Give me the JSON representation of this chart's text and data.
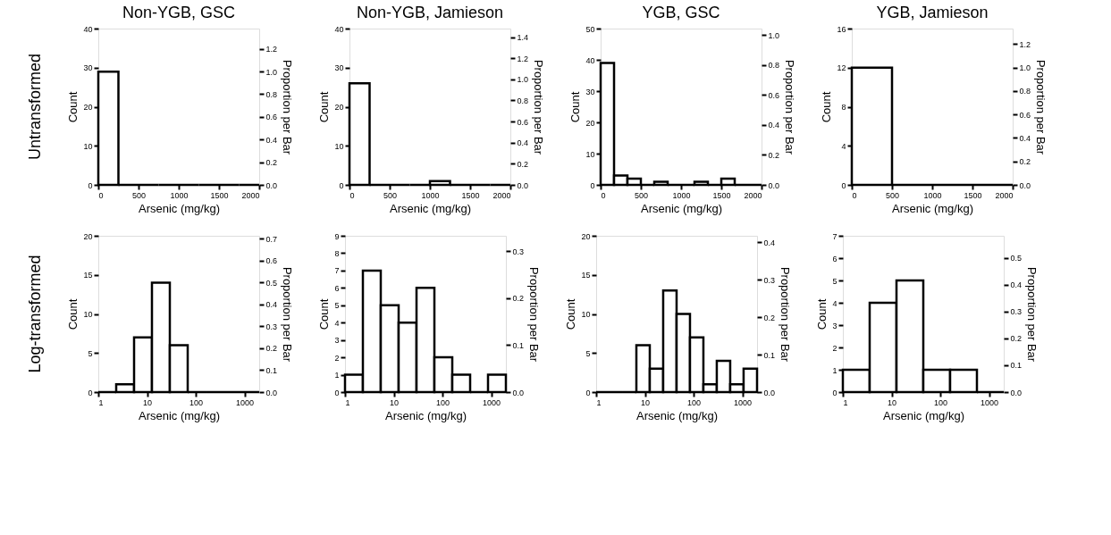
{
  "chart_data": [
    {
      "type": "histogram",
      "title": "Non-YGB,  GSC",
      "xlabel": "Arsenic (mg/kg)",
      "ylabel": "Count",
      "y2label": "Proportion per Bar",
      "annotations": [
        "Untransformed"
      ],
      "color": "#000000",
      "bins": [
        0,
        250,
        500,
        750,
        1000,
        1250,
        1500,
        1750,
        2000
      ],
      "values": [
        29,
        0,
        0,
        0,
        0,
        0,
        0,
        0
      ],
      "xlim": [
        0,
        2000
      ],
      "xticks": [
        0,
        500,
        1000,
        1500,
        2000
      ],
      "ylim": [
        0,
        40
      ],
      "yticks": [
        0,
        10,
        20,
        30,
        40
      ],
      "y2lim": [
        0,
        1.379
      ],
      "y2ticks": [
        {
          "value": 0,
          "label": "0.0"
        },
        {
          "value": 0.2,
          "label": "0.2"
        },
        {
          "value": 0.4,
          "label": "0.4"
        },
        {
          "value": 0.6,
          "label": "0.6"
        },
        {
          "value": 0.8,
          "label": "0.8"
        },
        {
          "value": 1,
          "label": "1.0"
        },
        {
          "value": 1.2,
          "label": "1.2"
        }
      ]
    },
    {
      "type": "histogram",
      "title": "Non-YGB,  Jamieson",
      "xlabel": "Arsenic (mg/kg)",
      "ylabel": "Count",
      "y2label": "Proportion per Bar",
      "color": "#000000",
      "bins": [
        0,
        250,
        500,
        750,
        1000,
        1250,
        1500,
        1750,
        2000
      ],
      "values": [
        26,
        0,
        0,
        0,
        1,
        0,
        0,
        0
      ],
      "xlim": [
        0,
        2000
      ],
      "xticks": [
        0,
        500,
        1000,
        1500,
        2000
      ],
      "ylim": [
        0,
        40
      ],
      "yticks": [
        0,
        10,
        20,
        30,
        40
      ],
      "y2lim": [
        0,
        1.481
      ],
      "y2ticks": [
        {
          "value": 0,
          "label": "0.0"
        },
        {
          "value": 0.2,
          "label": "0.2"
        },
        {
          "value": 0.4,
          "label": "0.4"
        },
        {
          "value": 0.6,
          "label": "0.6"
        },
        {
          "value": 0.8,
          "label": "0.8"
        },
        {
          "value": 1,
          "label": "1.0"
        },
        {
          "value": 1.2,
          "label": "1.2"
        },
        {
          "value": 1.4,
          "label": "1.4"
        }
      ]
    },
    {
      "type": "histogram",
      "title": "YGB,  GSC",
      "xlabel": "Arsenic (mg/kg)",
      "ylabel": "Count",
      "y2label": "Proportion per Bar",
      "color": "#000000",
      "bins": [
        0,
        166.7,
        333.3,
        500,
        666.7,
        833.3,
        1000,
        1166.7,
        1333.3,
        1500,
        1666.7,
        1833.3,
        2000
      ],
      "values": [
        39,
        3,
        2,
        0,
        1,
        0,
        0,
        1,
        0,
        2,
        0,
        0
      ],
      "xlim": [
        0,
        2000
      ],
      "xticks": [
        0,
        500,
        1000,
        1500,
        2000
      ],
      "ylim": [
        0,
        50
      ],
      "yticks": [
        0,
        10,
        20,
        30,
        40,
        50
      ],
      "y2lim": [
        0,
        1.042
      ],
      "y2ticks": [
        {
          "value": 0,
          "label": "0.0"
        },
        {
          "value": 0.2,
          "label": "0.2"
        },
        {
          "value": 0.4,
          "label": "0.4"
        },
        {
          "value": 0.6,
          "label": "0.6"
        },
        {
          "value": 0.8,
          "label": "0.8"
        },
        {
          "value": 1,
          "label": "1.0"
        }
      ]
    },
    {
      "type": "histogram",
      "title": "YGB,  Jamieson",
      "xlabel": "Arsenic (mg/kg)",
      "ylabel": "Count",
      "y2label": "Proportion per Bar",
      "color": "#000000",
      "bins": [
        0,
        500,
        1000,
        1500,
        2000
      ],
      "values": [
        12,
        0,
        0,
        0
      ],
      "xlim": [
        0,
        2000
      ],
      "xticks": [
        0,
        500,
        1000,
        1500,
        2000
      ],
      "ylim": [
        0,
        16
      ],
      "yticks": [
        0,
        4,
        8,
        12,
        16
      ],
      "y2lim": [
        0,
        1.333
      ],
      "y2ticks": [
        {
          "value": 0,
          "label": "0.0"
        },
        {
          "value": 0.2,
          "label": "0.2"
        },
        {
          "value": 0.4,
          "label": "0.4"
        },
        {
          "value": 0.6,
          "label": "0.6"
        },
        {
          "value": 0.8,
          "label": "0.8"
        },
        {
          "value": 1,
          "label": "1.0"
        },
        {
          "value": 1.2,
          "label": "1.2"
        }
      ]
    },
    {
      "type": "histogram",
      "xlabel": "Arsenic (mg/kg)",
      "ylabel": "Count",
      "y2label": "Proportion per Bar",
      "annotations": [
        "Log-transformed"
      ],
      "log": "x",
      "color": "#000000",
      "bins": [
        1,
        2.327,
        5.415,
        12.6,
        29.32,
        68.23,
        158.8,
        369.4,
        859.6,
        2000
      ],
      "values": [
        0,
        1,
        7,
        14,
        6,
        0,
        0,
        0,
        0
      ],
      "xlim": [
        1,
        2000
      ],
      "xticks": [
        1,
        10,
        100,
        1000
      ],
      "ylim": [
        0,
        20
      ],
      "yticks": [
        0,
        5,
        10,
        15,
        20
      ],
      "y2lim": [
        0,
        0.714
      ],
      "y2ticks": [
        {
          "value": 0,
          "label": "0.0"
        },
        {
          "value": 0.1,
          "label": "0.1"
        },
        {
          "value": 0.2,
          "label": "0.2"
        },
        {
          "value": 0.3,
          "label": "0.3"
        },
        {
          "value": 0.4,
          "label": "0.4"
        },
        {
          "value": 0.5,
          "label": "0.5"
        },
        {
          "value": 0.6,
          "label": "0.6"
        },
        {
          "value": 0.7,
          "label": "0.7"
        }
      ]
    },
    {
      "type": "histogram",
      "xlabel": "Arsenic (mg/kg)",
      "ylabel": "Count",
      "y2label": "Proportion per Bar",
      "log": "x",
      "color": "#000000",
      "bins": [
        1,
        2.327,
        5.415,
        12.6,
        29.32,
        68.23,
        158.8,
        369.4,
        859.6,
        2000
      ],
      "values": [
        1,
        7,
        5,
        4,
        6,
        2,
        1,
        0,
        1
      ],
      "xlim": [
        1,
        2000
      ],
      "xticks": [
        1,
        10,
        100,
        1000
      ],
      "ylim": [
        0,
        9
      ],
      "yticks": [
        0,
        1,
        2,
        3,
        4,
        5,
        6,
        7,
        8,
        9
      ],
      "y2lim": [
        0,
        0.333
      ],
      "y2ticks": [
        {
          "value": 0,
          "label": "0.0"
        },
        {
          "value": 0.1,
          "label": "0.1"
        },
        {
          "value": 0.2,
          "label": "0.2"
        },
        {
          "value": 0.3,
          "label": "0.3"
        }
      ]
    },
    {
      "type": "histogram",
      "xlabel": "Arsenic (mg/kg)",
      "ylabel": "Count",
      "y2label": "Proportion per Bar",
      "log": "x",
      "color": "#000000",
      "bins": [
        1,
        1.884,
        3.548,
        6.683,
        12.59,
        23.71,
        44.66,
        84.12,
        158.5,
        298.5,
        562.3,
        1059,
        2000
      ],
      "values": [
        0,
        0,
        0,
        6,
        3,
        13,
        10,
        7,
        1,
        4,
        1,
        3
      ],
      "xlim": [
        1,
        2000
      ],
      "xticks": [
        1,
        10,
        100,
        1000
      ],
      "ylim": [
        0,
        20
      ],
      "yticks": [
        0,
        5,
        10,
        15,
        20
      ],
      "y2lim": [
        0,
        0.417
      ],
      "y2ticks": [
        {
          "value": 0,
          "label": "0.0"
        },
        {
          "value": 0.1,
          "label": "0.1"
        },
        {
          "value": 0.2,
          "label": "0.2"
        },
        {
          "value": 0.3,
          "label": "0.3"
        },
        {
          "value": 0.4,
          "label": "0.4"
        }
      ]
    },
    {
      "type": "histogram",
      "xlabel": "Arsenic (mg/kg)",
      "ylabel": "Count",
      "y2label": "Proportion per Bar",
      "log": "x",
      "color": "#000000",
      "bins": [
        1,
        3.549,
        12.6,
        44.72,
        158.7,
        563.4,
        2000
      ],
      "values": [
        1,
        4,
        5,
        1,
        1,
        0
      ],
      "xlim": [
        1,
        2000
      ],
      "xticks": [
        1,
        10,
        100,
        1000
      ],
      "ylim": [
        0,
        7
      ],
      "yticks": [
        0,
        1,
        2,
        3,
        4,
        5,
        6,
        7
      ],
      "y2lim": [
        0,
        0.583
      ],
      "y2ticks": [
        {
          "value": 0,
          "label": "0.0"
        },
        {
          "value": 0.1,
          "label": "0.1"
        },
        {
          "value": 0.2,
          "label": "0.2"
        },
        {
          "value": 0.3,
          "label": "0.3"
        },
        {
          "value": 0.4,
          "label": "0.4"
        },
        {
          "value": 0.5,
          "label": "0.5"
        }
      ]
    }
  ]
}
